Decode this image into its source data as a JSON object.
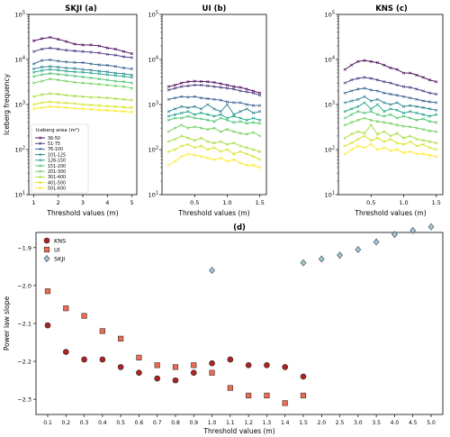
{
  "chart_data": [
    {
      "panel": "a",
      "type": "line",
      "title": "SKJI (a)",
      "xlabel": "Threshold values (m)",
      "ylabel": "Iceberg frequency",
      "yscale": "log",
      "xlim": [
        0.8,
        5.2
      ],
      "ylim": [
        10,
        100000
      ],
      "xticks": [
        "1",
        "2",
        "3",
        "4",
        "5"
      ],
      "yticks": [
        "10^1",
        "10^2",
        "10^3",
        "10^4",
        "10^5"
      ],
      "legend_title": "Iceberg area (m²)",
      "legend_placement": "lower-left",
      "x": [
        1.0,
        1.33,
        1.67,
        2.0,
        2.33,
        2.67,
        3.0,
        3.33,
        3.67,
        4.0,
        4.33,
        4.67,
        5.0
      ],
      "series": [
        {
          "name": "36-50",
          "color": "#440154",
          "values": [
            26000,
            29000,
            31000,
            28000,
            25000,
            22000,
            21000,
            21000,
            20000,
            18000,
            17000,
            15000,
            13500
          ]
        },
        {
          "name": "51-75",
          "color": "#46327e",
          "values": [
            15000,
            17000,
            18000,
            17000,
            16000,
            15500,
            15000,
            14500,
            14000,
            13000,
            12500,
            11500,
            11000
          ]
        },
        {
          "name": "76-100",
          "color": "#365c8d",
          "values": [
            8000,
            9500,
            9800,
            9200,
            8800,
            8600,
            8500,
            8000,
            7600,
            7400,
            7000,
            6500,
            6200
          ]
        },
        {
          "name": "101-125",
          "color": "#277f8e",
          "values": [
            6200,
            6800,
            7000,
            6800,
            6500,
            6300,
            6000,
            5800,
            5500,
            5300,
            5000,
            4800,
            4500
          ]
        },
        {
          "name": "126-150",
          "color": "#1fa187",
          "values": [
            5200,
            5700,
            6000,
            5800,
            5500,
            5300,
            5200,
            5000,
            4800,
            4600,
            4400,
            4200,
            4000
          ]
        },
        {
          "name": "151-200",
          "color": "#4ac16d",
          "values": [
            4200,
            4600,
            4900,
            4700,
            4500,
            4300,
            4100,
            3900,
            3700,
            3500,
            3300,
            3200,
            3000
          ]
        },
        {
          "name": "201-300",
          "color": "#6dcd59",
          "values": [
            3000,
            3300,
            3700,
            3500,
            3300,
            3100,
            3000,
            2900,
            2800,
            2700,
            2600,
            2500,
            2300
          ]
        },
        {
          "name": "301-400",
          "color": "#a0da39",
          "values": [
            1500,
            1650,
            1750,
            1700,
            1600,
            1550,
            1500,
            1450,
            1450,
            1400,
            1350,
            1300,
            1250
          ]
        },
        {
          "name": "401-500",
          "color": "#d0e11c",
          "values": [
            1000,
            1100,
            1150,
            1100,
            1080,
            1050,
            1000,
            980,
            950,
            920,
            900,
            870,
            850
          ]
        },
        {
          "name": "501-600",
          "color": "#fde725",
          "values": [
            800,
            850,
            900,
            880,
            850,
            820,
            800,
            780,
            760,
            740,
            720,
            700,
            680
          ]
        }
      ]
    },
    {
      "panel": "b",
      "type": "line",
      "title": "UI (b)",
      "xlabel": "Threshold values (m)",
      "ylabel": "",
      "yscale": "log",
      "xlim": [
        0.0,
        1.6
      ],
      "ylim": [
        10,
        100000
      ],
      "xticks": [
        "0.5",
        "1.0",
        "1.5"
      ],
      "yticks": [
        "10^1",
        "10^2",
        "10^3",
        "10^4",
        "10^5"
      ],
      "x": [
        0.1,
        0.2,
        0.3,
        0.4,
        0.5,
        0.6,
        0.7,
        0.8,
        0.9,
        1.0,
        1.1,
        1.2,
        1.3,
        1.4,
        1.5
      ],
      "series": [
        {
          "name": "36-50",
          "color": "#440154",
          "values": [
            2500,
            2700,
            3000,
            3200,
            3300,
            3250,
            3200,
            3100,
            2900,
            2700,
            2500,
            2400,
            2200,
            2000,
            1800
          ]
        },
        {
          "name": "51-75",
          "color": "#46327e",
          "values": [
            2100,
            2300,
            2500,
            2600,
            2700,
            2700,
            2600,
            2500,
            2400,
            2300,
            2200,
            2000,
            1900,
            1800,
            1600
          ]
        },
        {
          "name": "76-100",
          "color": "#365c8d",
          "values": [
            1300,
            1400,
            1500,
            1450,
            1500,
            1400,
            1350,
            1300,
            1250,
            1150,
            1100,
            1100,
            1000,
            950,
            950
          ]
        },
        {
          "name": "101-125",
          "color": "#277f8e",
          "values": [
            700,
            800,
            900,
            850,
            900,
            800,
            1000,
            800,
            700,
            1000,
            600,
            700,
            800,
            650,
            700
          ]
        },
        {
          "name": "126-150",
          "color": "#1fa187",
          "values": [
            550,
            600,
            650,
            700,
            600,
            650,
            600,
            550,
            600,
            500,
            550,
            500,
            450,
            500,
            450
          ]
        },
        {
          "name": "151-200",
          "color": "#4ac16d",
          "values": [
            450,
            500,
            500,
            550,
            500,
            480,
            450,
            420,
            500,
            450,
            400,
            420,
            380,
            400,
            380
          ]
        },
        {
          "name": "201-300",
          "color": "#6dcd59",
          "values": [
            250,
            300,
            350,
            300,
            320,
            300,
            280,
            300,
            250,
            280,
            250,
            230,
            220,
            240,
            200
          ]
        },
        {
          "name": "301-400",
          "color": "#a0da39",
          "values": [
            150,
            170,
            200,
            180,
            160,
            180,
            150,
            140,
            150,
            130,
            140,
            120,
            110,
            100,
            90
          ]
        },
        {
          "name": "401-500",
          "color": "#d0e11c",
          "values": [
            90,
            100,
            120,
            130,
            110,
            120,
            100,
            110,
            90,
            100,
            80,
            90,
            80,
            70,
            60
          ]
        },
        {
          "name": "501-600",
          "color": "#fde725",
          "values": [
            45,
            55,
            70,
            80,
            75,
            70,
            65,
            60,
            65,
            55,
            60,
            50,
            45,
            45,
            40
          ]
        }
      ]
    },
    {
      "panel": "c",
      "type": "line",
      "title": "KNS (c)",
      "xlabel": "Threshold values (m)",
      "ylabel": "",
      "yscale": "log",
      "xlim": [
        0.0,
        1.6
      ],
      "ylim": [
        10,
        100000
      ],
      "xticks": [
        "0.5",
        "1.0",
        "1.5"
      ],
      "yticks": [
        "10^1",
        "10^2",
        "10^3",
        "10^4",
        "10^5"
      ],
      "x": [
        0.1,
        0.2,
        0.3,
        0.4,
        0.5,
        0.6,
        0.7,
        0.8,
        0.9,
        1.0,
        1.1,
        1.2,
        1.3,
        1.4,
        1.5
      ],
      "series": [
        {
          "name": "36-50",
          "color": "#440154",
          "values": [
            6000,
            7500,
            9000,
            9500,
            9000,
            8500,
            7500,
            6500,
            6000,
            5000,
            5000,
            4500,
            4000,
            3500,
            3200
          ]
        },
        {
          "name": "51-75",
          "color": "#46327e",
          "values": [
            3000,
            3500,
            3800,
            4000,
            3800,
            3500,
            3200,
            3000,
            2700,
            2500,
            2400,
            2200,
            2000,
            1800,
            1700
          ]
        },
        {
          "name": "76-100",
          "color": "#365c8d",
          "values": [
            1800,
            2000,
            2200,
            2300,
            2100,
            2000,
            1800,
            1700,
            1600,
            1500,
            1400,
            1300,
            1200,
            1150,
            1100
          ]
        },
        {
          "name": "101-125",
          "color": "#277f8e",
          "values": [
            1100,
            1200,
            1300,
            1500,
            1200,
            1300,
            1100,
            1000,
            1100,
            900,
            950,
            900,
            850,
            800,
            750
          ]
        },
        {
          "name": "126-150",
          "color": "#1fa187",
          "values": [
            700,
            800,
            900,
            1100,
            800,
            1000,
            700,
            800,
            750,
            650,
            700,
            650,
            600,
            550,
            600
          ]
        },
        {
          "name": "151-200",
          "color": "#4ac16d",
          "values": [
            500,
            600,
            700,
            650,
            700,
            600,
            550,
            600,
            500,
            550,
            500,
            450,
            480,
            420,
            400
          ]
        },
        {
          "name": "201-300",
          "color": "#6dcd59",
          "values": [
            350,
            400,
            450,
            500,
            450,
            420,
            400,
            380,
            350,
            330,
            320,
            300,
            280,
            260,
            250
          ]
        },
        {
          "name": "301-400",
          "color": "#a0da39",
          "values": [
            180,
            220,
            250,
            230,
            350,
            220,
            250,
            200,
            230,
            180,
            200,
            170,
            160,
            150,
            140
          ]
        },
        {
          "name": "401-500",
          "color": "#d0e11c",
          "values": [
            120,
            140,
            170,
            200,
            160,
            180,
            150,
            170,
            140,
            130,
            150,
            120,
            130,
            110,
            100
          ]
        },
        {
          "name": "501-600",
          "color": "#fde725",
          "values": [
            80,
            100,
            120,
            110,
            130,
            100,
            110,
            95,
            100,
            85,
            90,
            80,
            80,
            75,
            70
          ]
        }
      ]
    },
    {
      "panel": "d",
      "type": "scatter",
      "title": "(d)",
      "xlabel": "Threshold values (m)",
      "ylabel": "Power law slope",
      "categories": [
        "0.1",
        "0.2",
        "0.3",
        "0.4",
        "0.5",
        "0.6",
        "0.7",
        "0.8",
        "0.9",
        "1.0",
        "1.1",
        "1.2",
        "1.3",
        "1.4",
        "1.5",
        "2.0",
        "2.5",
        "3.0",
        "3.5",
        "4.0",
        "4.5",
        "5.0"
      ],
      "ylim": [
        -2.34,
        -1.86
      ],
      "yticks": [
        "-2.3",
        "-2.2",
        "-2.1",
        "-2.0",
        "-1.9"
      ],
      "grid": false,
      "legend_placement": "top-left",
      "series": [
        {
          "name": "KNS",
          "marker": "circle",
          "color": "#b22222",
          "points": [
            [
              "0.1",
              -2.105
            ],
            [
              "0.2",
              -2.175
            ],
            [
              "0.3",
              -2.195
            ],
            [
              "0.4",
              -2.195
            ],
            [
              "0.5",
              -2.215
            ],
            [
              "0.6",
              -2.23
            ],
            [
              "0.7",
              -2.245
            ],
            [
              "0.8",
              -2.25
            ],
            [
              "0.9",
              -2.23
            ],
            [
              "1.0",
              -2.205
            ],
            [
              "1.1",
              -2.195
            ],
            [
              "1.2",
              -2.21
            ],
            [
              "1.3",
              -2.21
            ],
            [
              "1.4",
              -2.215
            ],
            [
              "1.5",
              -2.24
            ]
          ]
        },
        {
          "name": "UI",
          "marker": "square",
          "color": "#ee6a50",
          "points": [
            [
              "0.1",
              -2.015
            ],
            [
              "0.2",
              -2.06
            ],
            [
              "0.3",
              -2.08
            ],
            [
              "0.4",
              -2.12
            ],
            [
              "0.5",
              -2.14
            ],
            [
              "0.6",
              -2.19
            ],
            [
              "0.7",
              -2.21
            ],
            [
              "0.8",
              -2.215
            ],
            [
              "0.9",
              -2.21
            ],
            [
              "1.0",
              -2.23
            ],
            [
              "1.1",
              -2.27
            ],
            [
              "1.2",
              -2.29
            ],
            [
              "1.3",
              -2.29
            ],
            [
              "1.4",
              -2.31
            ],
            [
              "1.5",
              -2.29
            ]
          ]
        },
        {
          "name": "SKJI",
          "marker": "diamond",
          "color": "#9ec6d6",
          "points": [
            [
              "1.0",
              -1.96
            ],
            [
              "1.5",
              -1.94
            ],
            [
              "2.0",
              -1.93
            ],
            [
              "2.5",
              -1.92
            ],
            [
              "3.0",
              -1.905
            ],
            [
              "3.5",
              -1.885
            ],
            [
              "4.0",
              -1.865
            ],
            [
              "4.5",
              -1.855
            ],
            [
              "5.0",
              -1.845
            ]
          ]
        }
      ]
    }
  ]
}
